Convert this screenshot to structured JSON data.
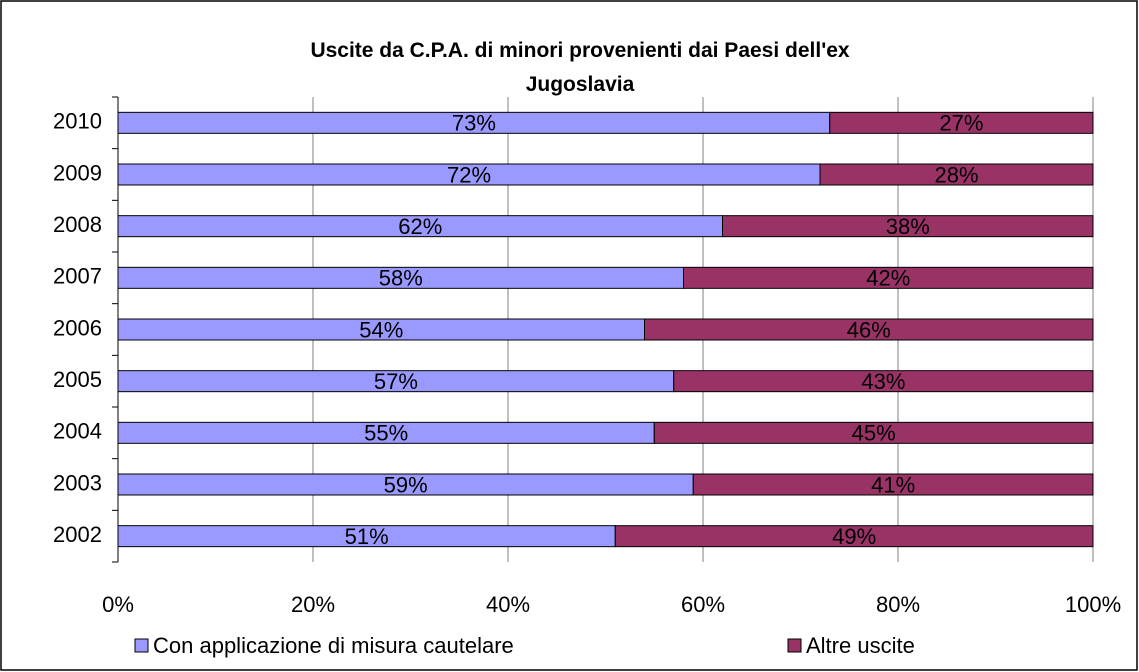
{
  "chart_data": {
    "type": "stacked-bar-horizontal",
    "title": "Uscite da C.P.A. di minori provenienti dai Paesi dell'ex Jugoslavia",
    "categories": [
      "2010",
      "2009",
      "2008",
      "2007",
      "2006",
      "2005",
      "2004",
      "2003",
      "2002"
    ],
    "series": [
      {
        "name": "Con applicazione di misura cautelare",
        "color": "#9999ff",
        "values": [
          73,
          72,
          62,
          58,
          54,
          57,
          55,
          59,
          51
        ],
        "value_labels": [
          "73%",
          "72%",
          "62%",
          "58%",
          "54%",
          "57%",
          "55%",
          "59%",
          "51%"
        ]
      },
      {
        "name": "Altre uscite",
        "color": "#993366",
        "values": [
          27,
          28,
          38,
          42,
          46,
          43,
          45,
          41,
          49
        ],
        "value_labels": [
          "27%",
          "28%",
          "38%",
          "42%",
          "46%",
          "43%",
          "45%",
          "41%",
          "49%"
        ]
      }
    ],
    "xlim": [
      0,
      100
    ],
    "xticks": [
      {
        "value": 0,
        "label": "0%"
      },
      {
        "value": 20,
        "label": "20%"
      },
      {
        "value": 40,
        "label": "40%"
      },
      {
        "value": 60,
        "label": "60%"
      },
      {
        "value": 80,
        "label": "80%"
      },
      {
        "value": 100,
        "label": "100%"
      }
    ],
    "grid": true,
    "legend": "bottom"
  }
}
